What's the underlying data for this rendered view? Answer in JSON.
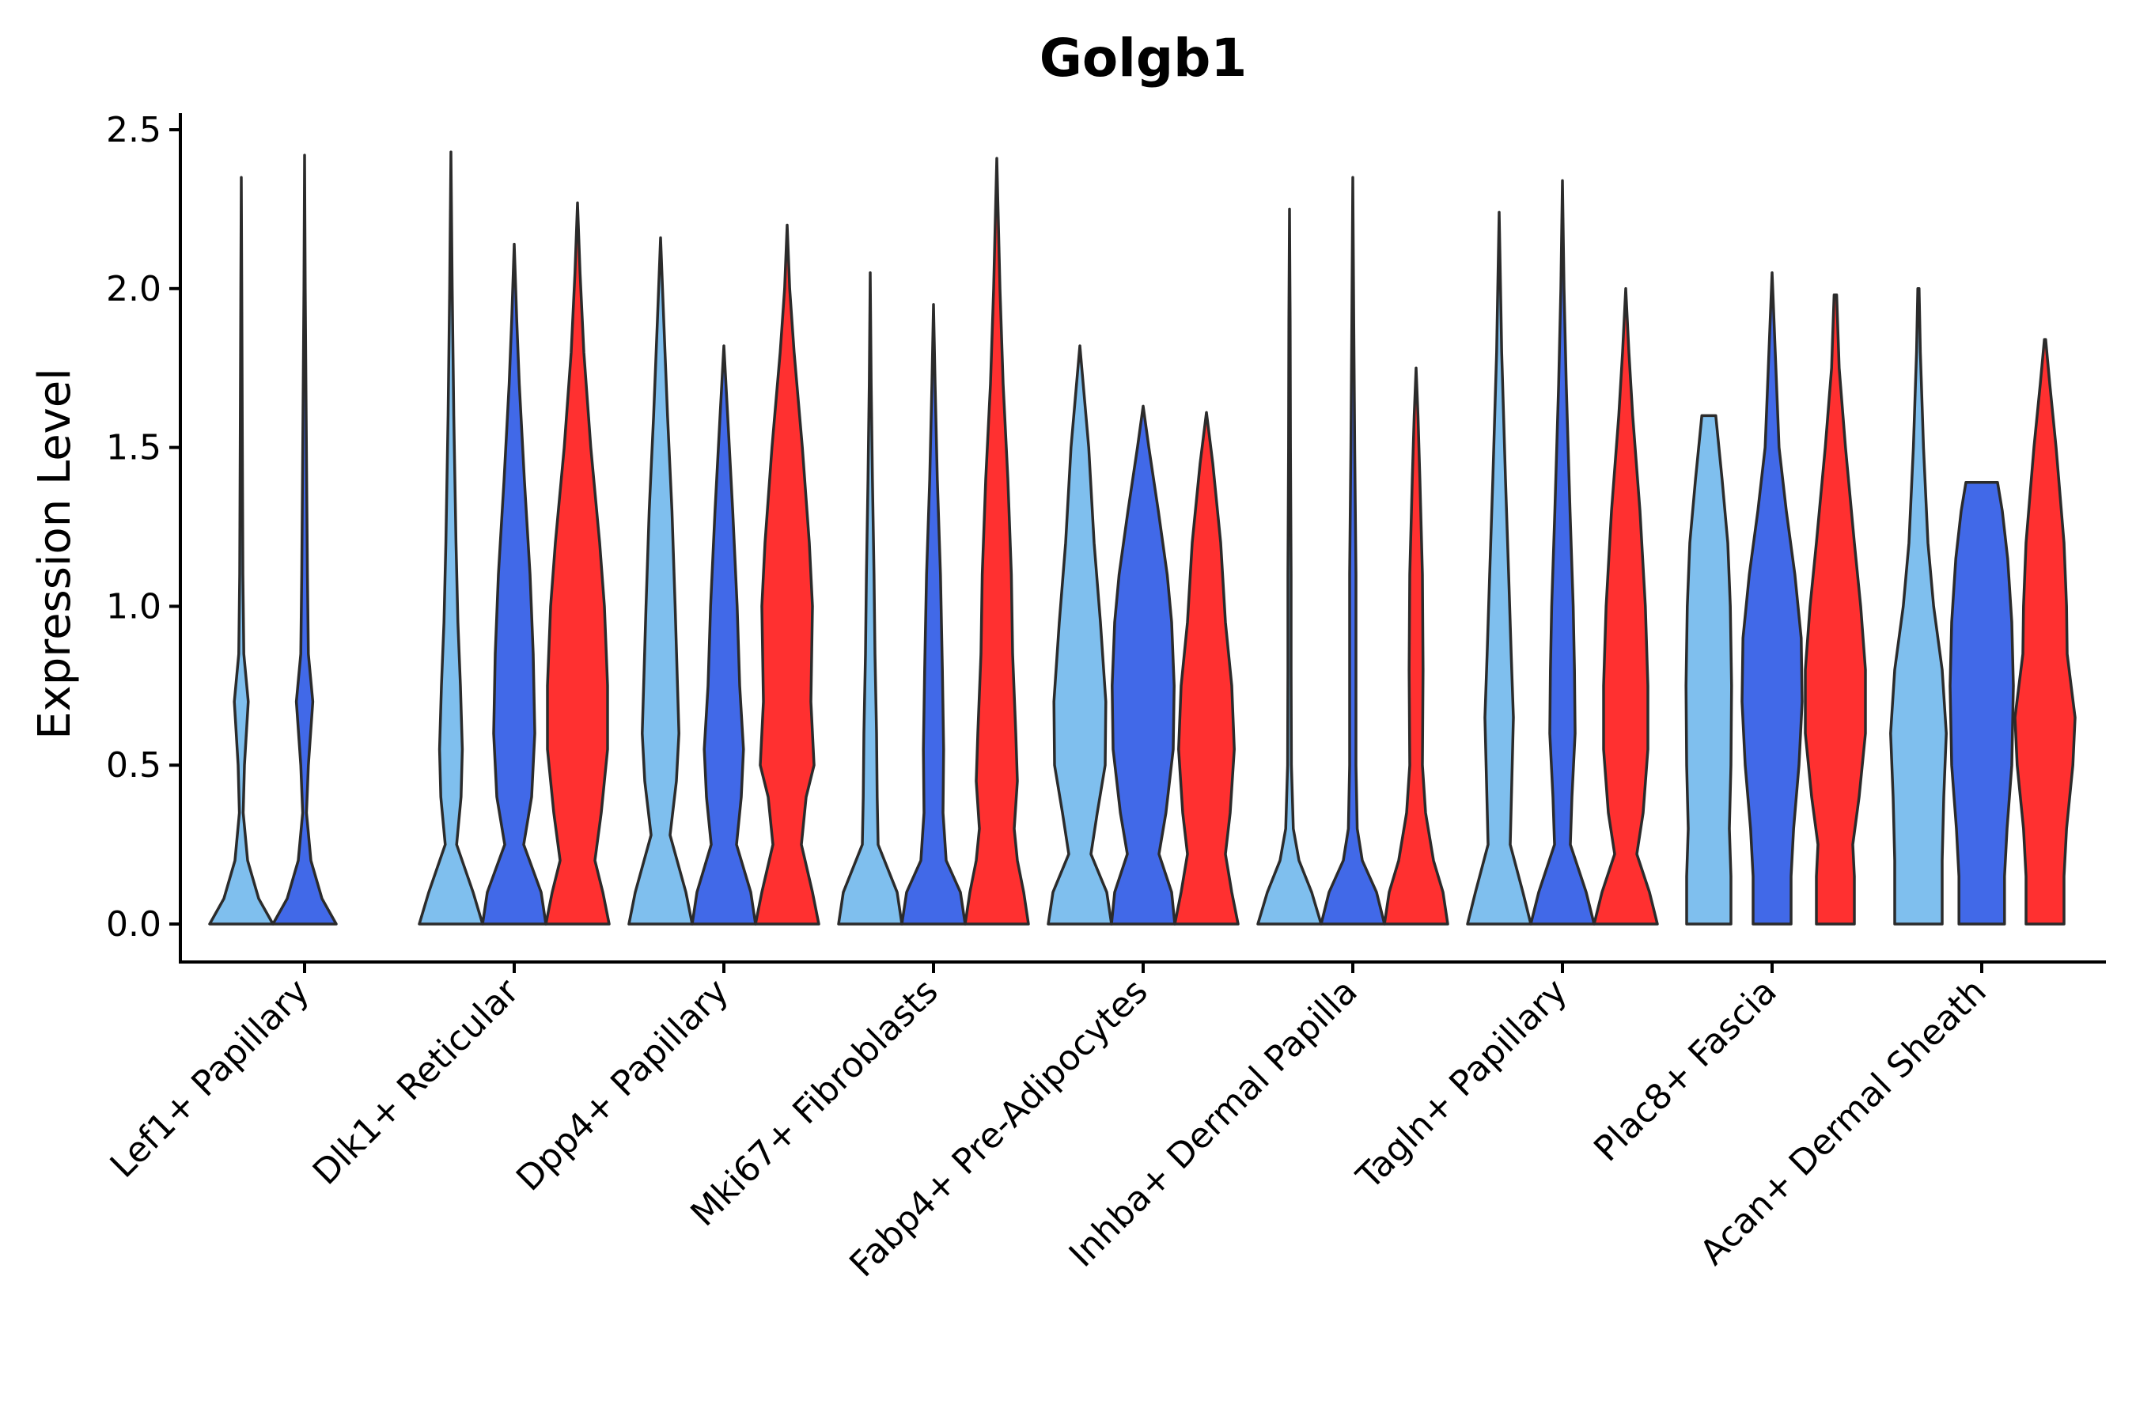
{
  "chart_data": {
    "type": "violin",
    "title": "Golgb1",
    "ylabel": "Expression Level",
    "xlabel": "",
    "ylim": [
      -0.12,
      2.56
    ],
    "yticks": [
      "0.0",
      "0.5",
      "1.0",
      "1.5",
      "2.0",
      "2.5"
    ],
    "categories": [
      "Lef1+ Papillary",
      "Dlk1+ Reticular",
      "Dpp4+ Papillary",
      "Mki67+ Fibroblasts",
      "Fabp4+ Pre-Adipocytes",
      "Inhba+ Dermal Papilla",
      "Tagln+ Papillary",
      "Plac8+ Fascia",
      "Acan+ Dermal Sheath"
    ],
    "series_colors": [
      "#7FBFEE",
      "#4169E8",
      "#FF3030"
    ],
    "violins": [
      {
        "category": 0,
        "group": 0,
        "max": 2.35,
        "profile": [
          [
            0,
            1
          ],
          [
            0.08,
            0.55
          ],
          [
            0.2,
            0.2
          ],
          [
            0.35,
            0.06
          ],
          [
            0.5,
            0.1
          ],
          [
            0.7,
            0.22
          ],
          [
            0.85,
            0.08
          ],
          [
            1.1,
            0.05
          ],
          [
            1.6,
            0.03
          ],
          [
            2.0,
            0.015
          ],
          [
            2.35,
            0
          ]
        ]
      },
      {
        "category": 0,
        "group": 1,
        "max": 2.42,
        "profile": [
          [
            0,
            1
          ],
          [
            0.08,
            0.55
          ],
          [
            0.2,
            0.2
          ],
          [
            0.35,
            0.06
          ],
          [
            0.5,
            0.12
          ],
          [
            0.7,
            0.26
          ],
          [
            0.85,
            0.12
          ],
          [
            1.1,
            0.09
          ],
          [
            1.6,
            0.05
          ],
          [
            2.0,
            0.02
          ],
          [
            2.42,
            0
          ]
        ]
      },
      {
        "category": 1,
        "group": 0,
        "max": 2.43,
        "profile": [
          [
            0,
            1
          ],
          [
            0.1,
            0.7
          ],
          [
            0.25,
            0.18
          ],
          [
            0.4,
            0.32
          ],
          [
            0.55,
            0.36
          ],
          [
            0.75,
            0.3
          ],
          [
            0.95,
            0.22
          ],
          [
            1.2,
            0.16
          ],
          [
            1.6,
            0.09
          ],
          [
            2.0,
            0.04
          ],
          [
            2.43,
            0
          ]
        ]
      },
      {
        "category": 1,
        "group": 1,
        "max": 2.14,
        "profile": [
          [
            0,
            1
          ],
          [
            0.1,
            0.85
          ],
          [
            0.25,
            0.3
          ],
          [
            0.4,
            0.55
          ],
          [
            0.6,
            0.65
          ],
          [
            0.85,
            0.6
          ],
          [
            1.1,
            0.5
          ],
          [
            1.4,
            0.32
          ],
          [
            1.7,
            0.16
          ],
          [
            1.9,
            0.08
          ],
          [
            2.14,
            0
          ]
        ]
      },
      {
        "category": 1,
        "group": 2,
        "max": 2.27,
        "profile": [
          [
            0,
            1
          ],
          [
            0.1,
            0.8
          ],
          [
            0.2,
            0.55
          ],
          [
            0.35,
            0.75
          ],
          [
            0.55,
            0.95
          ],
          [
            0.75,
            0.95
          ],
          [
            1.0,
            0.85
          ],
          [
            1.2,
            0.7
          ],
          [
            1.5,
            0.42
          ],
          [
            1.8,
            0.2
          ],
          [
            2.05,
            0.08
          ],
          [
            2.27,
            0
          ]
        ]
      },
      {
        "category": 2,
        "group": 0,
        "max": 2.16,
        "profile": [
          [
            0,
            1
          ],
          [
            0.1,
            0.8
          ],
          [
            0.28,
            0.3
          ],
          [
            0.45,
            0.5
          ],
          [
            0.6,
            0.58
          ],
          [
            0.8,
            0.52
          ],
          [
            1.0,
            0.46
          ],
          [
            1.3,
            0.36
          ],
          [
            1.6,
            0.22
          ],
          [
            1.9,
            0.1
          ],
          [
            2.16,
            0
          ]
        ]
      },
      {
        "category": 2,
        "group": 1,
        "max": 1.82,
        "profile": [
          [
            0,
            1
          ],
          [
            0.1,
            0.85
          ],
          [
            0.25,
            0.4
          ],
          [
            0.4,
            0.55
          ],
          [
            0.55,
            0.62
          ],
          [
            0.75,
            0.5
          ],
          [
            1.0,
            0.42
          ],
          [
            1.3,
            0.28
          ],
          [
            1.6,
            0.12
          ],
          [
            1.82,
            0
          ]
        ]
      },
      {
        "category": 2,
        "group": 2,
        "max": 2.2,
        "profile": [
          [
            0,
            1
          ],
          [
            0.1,
            0.8
          ],
          [
            0.25,
            0.45
          ],
          [
            0.4,
            0.6
          ],
          [
            0.5,
            0.85
          ],
          [
            0.7,
            0.75
          ],
          [
            1.0,
            0.8
          ],
          [
            1.2,
            0.7
          ],
          [
            1.5,
            0.48
          ],
          [
            1.8,
            0.22
          ],
          [
            2.0,
            0.08
          ],
          [
            2.2,
            0
          ]
        ]
      },
      {
        "category": 3,
        "group": 0,
        "max": 2.05,
        "profile": [
          [
            0,
            1
          ],
          [
            0.1,
            0.85
          ],
          [
            0.25,
            0.25
          ],
          [
            0.4,
            0.22
          ],
          [
            0.6,
            0.2
          ],
          [
            0.85,
            0.15
          ],
          [
            1.1,
            0.12
          ],
          [
            1.4,
            0.07
          ],
          [
            1.7,
            0.03
          ],
          [
            2.05,
            0
          ]
        ]
      },
      {
        "category": 3,
        "group": 1,
        "max": 1.95,
        "profile": [
          [
            0,
            1
          ],
          [
            0.1,
            0.85
          ],
          [
            0.2,
            0.4
          ],
          [
            0.35,
            0.3
          ],
          [
            0.55,
            0.32
          ],
          [
            0.8,
            0.28
          ],
          [
            1.1,
            0.22
          ],
          [
            1.4,
            0.12
          ],
          [
            1.7,
            0.05
          ],
          [
            1.95,
            0
          ]
        ]
      },
      {
        "category": 3,
        "group": 2,
        "max": 2.41,
        "profile": [
          [
            0,
            1
          ],
          [
            0.1,
            0.85
          ],
          [
            0.2,
            0.65
          ],
          [
            0.3,
            0.55
          ],
          [
            0.45,
            0.65
          ],
          [
            0.6,
            0.6
          ],
          [
            0.85,
            0.5
          ],
          [
            1.1,
            0.46
          ],
          [
            1.4,
            0.35
          ],
          [
            1.7,
            0.2
          ],
          [
            2.0,
            0.1
          ],
          [
            2.41,
            0
          ]
        ]
      },
      {
        "category": 4,
        "group": 0,
        "max": 1.82,
        "profile": [
          [
            0,
            1
          ],
          [
            0.1,
            0.85
          ],
          [
            0.22,
            0.35
          ],
          [
            0.35,
            0.55
          ],
          [
            0.5,
            0.8
          ],
          [
            0.7,
            0.82
          ],
          [
            0.95,
            0.65
          ],
          [
            1.2,
            0.45
          ],
          [
            1.5,
            0.28
          ],
          [
            1.82,
            0
          ]
        ]
      },
      {
        "category": 4,
        "group": 1,
        "max": 1.63,
        "profile": [
          [
            0,
            1
          ],
          [
            0.1,
            0.9
          ],
          [
            0.22,
            0.5
          ],
          [
            0.35,
            0.72
          ],
          [
            0.55,
            0.95
          ],
          [
            0.75,
            0.98
          ],
          [
            0.95,
            0.9
          ],
          [
            1.1,
            0.76
          ],
          [
            1.3,
            0.48
          ],
          [
            1.5,
            0.18
          ],
          [
            1.63,
            0
          ]
        ]
      },
      {
        "category": 4,
        "group": 2,
        "max": 1.61,
        "profile": [
          [
            0,
            1
          ],
          [
            0.1,
            0.8
          ],
          [
            0.22,
            0.6
          ],
          [
            0.35,
            0.75
          ],
          [
            0.55,
            0.88
          ],
          [
            0.75,
            0.8
          ],
          [
            0.95,
            0.6
          ],
          [
            1.2,
            0.45
          ],
          [
            1.45,
            0.2
          ],
          [
            1.61,
            0
          ]
        ]
      },
      {
        "category": 5,
        "group": 0,
        "max": 2.25,
        "profile": [
          [
            0,
            1
          ],
          [
            0.1,
            0.7
          ],
          [
            0.2,
            0.3
          ],
          [
            0.3,
            0.12
          ],
          [
            0.5,
            0.06
          ],
          [
            0.8,
            0.05
          ],
          [
            1.1,
            0.05
          ],
          [
            1.5,
            0.03
          ],
          [
            1.9,
            0.02
          ],
          [
            2.25,
            0
          ]
        ]
      },
      {
        "category": 5,
        "group": 1,
        "max": 2.35,
        "profile": [
          [
            0,
            1
          ],
          [
            0.1,
            0.75
          ],
          [
            0.2,
            0.3
          ],
          [
            0.3,
            0.14
          ],
          [
            0.5,
            0.1
          ],
          [
            0.8,
            0.1
          ],
          [
            1.1,
            0.1
          ],
          [
            1.5,
            0.06
          ],
          [
            1.9,
            0.03
          ],
          [
            2.35,
            0
          ]
        ]
      },
      {
        "category": 5,
        "group": 2,
        "max": 1.75,
        "profile": [
          [
            0,
            1
          ],
          [
            0.1,
            0.85
          ],
          [
            0.2,
            0.55
          ],
          [
            0.35,
            0.3
          ],
          [
            0.5,
            0.2
          ],
          [
            0.8,
            0.22
          ],
          [
            1.1,
            0.2
          ],
          [
            1.4,
            0.12
          ],
          [
            1.6,
            0.06
          ],
          [
            1.75,
            0
          ]
        ]
      },
      {
        "category": 6,
        "group": 0,
        "max": 2.24,
        "profile": [
          [
            0,
            1
          ],
          [
            0.1,
            0.75
          ],
          [
            0.25,
            0.35
          ],
          [
            0.45,
            0.4
          ],
          [
            0.65,
            0.45
          ],
          [
            0.85,
            0.38
          ],
          [
            1.1,
            0.3
          ],
          [
            1.4,
            0.2
          ],
          [
            1.8,
            0.08
          ],
          [
            2.24,
            0
          ]
        ]
      },
      {
        "category": 6,
        "group": 1,
        "max": 2.34,
        "profile": [
          [
            0,
            1
          ],
          [
            0.1,
            0.75
          ],
          [
            0.25,
            0.25
          ],
          [
            0.4,
            0.3
          ],
          [
            0.6,
            0.4
          ],
          [
            0.8,
            0.38
          ],
          [
            1.0,
            0.34
          ],
          [
            1.3,
            0.24
          ],
          [
            1.7,
            0.12
          ],
          [
            2.0,
            0.05
          ],
          [
            2.34,
            0
          ]
        ]
      },
      {
        "category": 6,
        "group": 2,
        "max": 2.0,
        "profile": [
          [
            0,
            1
          ],
          [
            0.1,
            0.75
          ],
          [
            0.22,
            0.35
          ],
          [
            0.35,
            0.55
          ],
          [
            0.55,
            0.7
          ],
          [
            0.75,
            0.7
          ],
          [
            1.0,
            0.62
          ],
          [
            1.3,
            0.45
          ],
          [
            1.6,
            0.22
          ],
          [
            1.8,
            0.1
          ],
          [
            2.0,
            0
          ]
        ]
      },
      {
        "category": 7,
        "group": 0,
        "max": 1.6,
        "profile": [
          [
            0,
            0.7
          ],
          [
            0.15,
            0.7
          ],
          [
            0.3,
            0.65
          ],
          [
            0.5,
            0.7
          ],
          [
            0.75,
            0.72
          ],
          [
            1.0,
            0.68
          ],
          [
            1.2,
            0.6
          ],
          [
            1.4,
            0.42
          ],
          [
            1.6,
            0.22
          ]
        ]
      },
      {
        "category": 7,
        "group": 1,
        "max": 2.05,
        "profile": [
          [
            0,
            0.6
          ],
          [
            0.15,
            0.6
          ],
          [
            0.3,
            0.68
          ],
          [
            0.5,
            0.85
          ],
          [
            0.7,
            0.95
          ],
          [
            0.9,
            0.92
          ],
          [
            1.1,
            0.72
          ],
          [
            1.3,
            0.45
          ],
          [
            1.5,
            0.22
          ],
          [
            1.8,
            0.1
          ],
          [
            2.05,
            0
          ]
        ]
      },
      {
        "category": 7,
        "group": 2,
        "max": 1.98,
        "profile": [
          [
            0,
            0.6
          ],
          [
            0.15,
            0.6
          ],
          [
            0.25,
            0.55
          ],
          [
            0.4,
            0.75
          ],
          [
            0.6,
            0.95
          ],
          [
            0.8,
            0.95
          ],
          [
            1.0,
            0.8
          ],
          [
            1.2,
            0.6
          ],
          [
            1.5,
            0.32
          ],
          [
            1.75,
            0.12
          ],
          [
            1.98,
            0.04
          ]
        ]
      },
      {
        "category": 8,
        "group": 0,
        "max": 2.0,
        "profile": [
          [
            0,
            0.75
          ],
          [
            0.2,
            0.75
          ],
          [
            0.4,
            0.8
          ],
          [
            0.6,
            0.88
          ],
          [
            0.8,
            0.75
          ],
          [
            1.0,
            0.48
          ],
          [
            1.2,
            0.3
          ],
          [
            1.5,
            0.16
          ],
          [
            1.8,
            0.06
          ],
          [
            2.0,
            0.02
          ]
        ]
      },
      {
        "category": 8,
        "group": 1,
        "max": 1.39,
        "profile": [
          [
            0,
            0.72
          ],
          [
            0.15,
            0.72
          ],
          [
            0.3,
            0.8
          ],
          [
            0.5,
            0.95
          ],
          [
            0.75,
            1.0
          ],
          [
            0.95,
            0.95
          ],
          [
            1.15,
            0.82
          ],
          [
            1.3,
            0.65
          ],
          [
            1.39,
            0.5
          ]
        ]
      },
      {
        "category": 8,
        "group": 2,
        "max": 1.84,
        "profile": [
          [
            0,
            0.6
          ],
          [
            0.15,
            0.6
          ],
          [
            0.3,
            0.68
          ],
          [
            0.5,
            0.88
          ],
          [
            0.65,
            0.95
          ],
          [
            0.85,
            0.7
          ],
          [
            1.0,
            0.68
          ],
          [
            1.2,
            0.6
          ],
          [
            1.5,
            0.35
          ],
          [
            1.7,
            0.15
          ],
          [
            1.84,
            0.02
          ]
        ]
      }
    ]
  }
}
